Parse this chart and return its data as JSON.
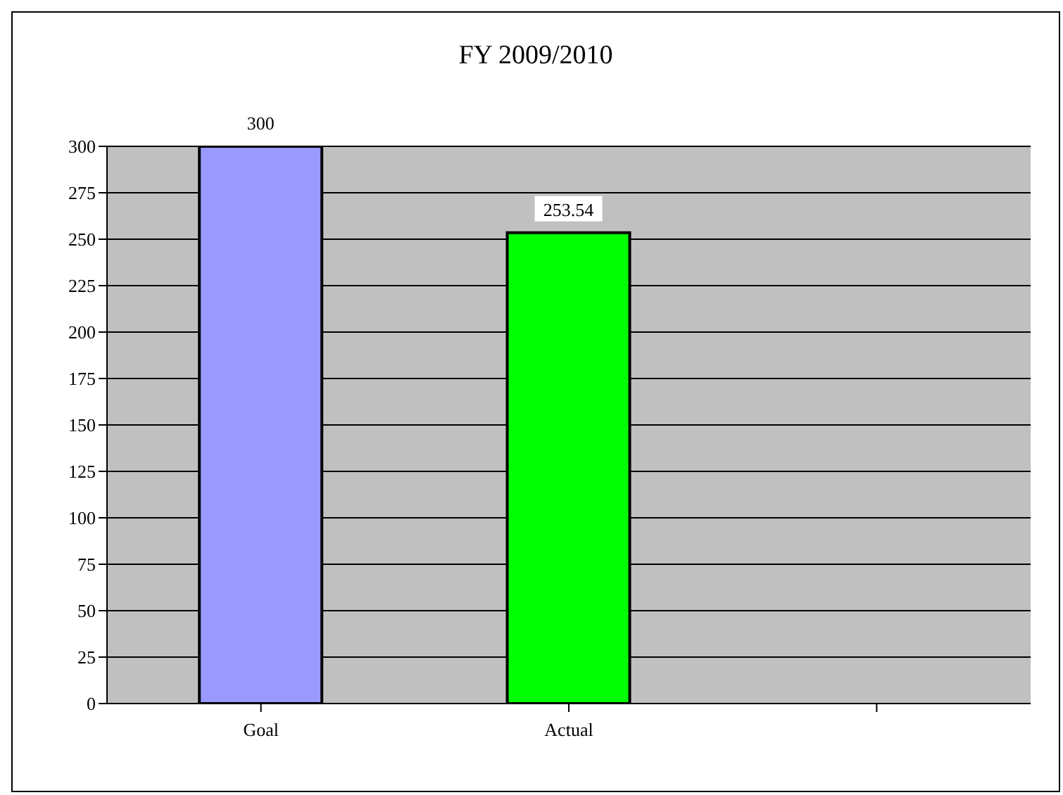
{
  "chart_data": {
    "type": "bar",
    "title": "FY 2009/2010",
    "categories": [
      "Goal",
      "Actual",
      null
    ],
    "values": [
      300,
      253.54,
      null
    ],
    "colors": [
      "#9999ff",
      "#00ff00",
      null
    ],
    "ylim": [
      0,
      300
    ],
    "yticks": [
      0,
      25,
      50,
      75,
      100,
      125,
      150,
      175,
      200,
      225,
      250,
      275,
      300
    ],
    "grid": "y",
    "data_labels": true
  }
}
